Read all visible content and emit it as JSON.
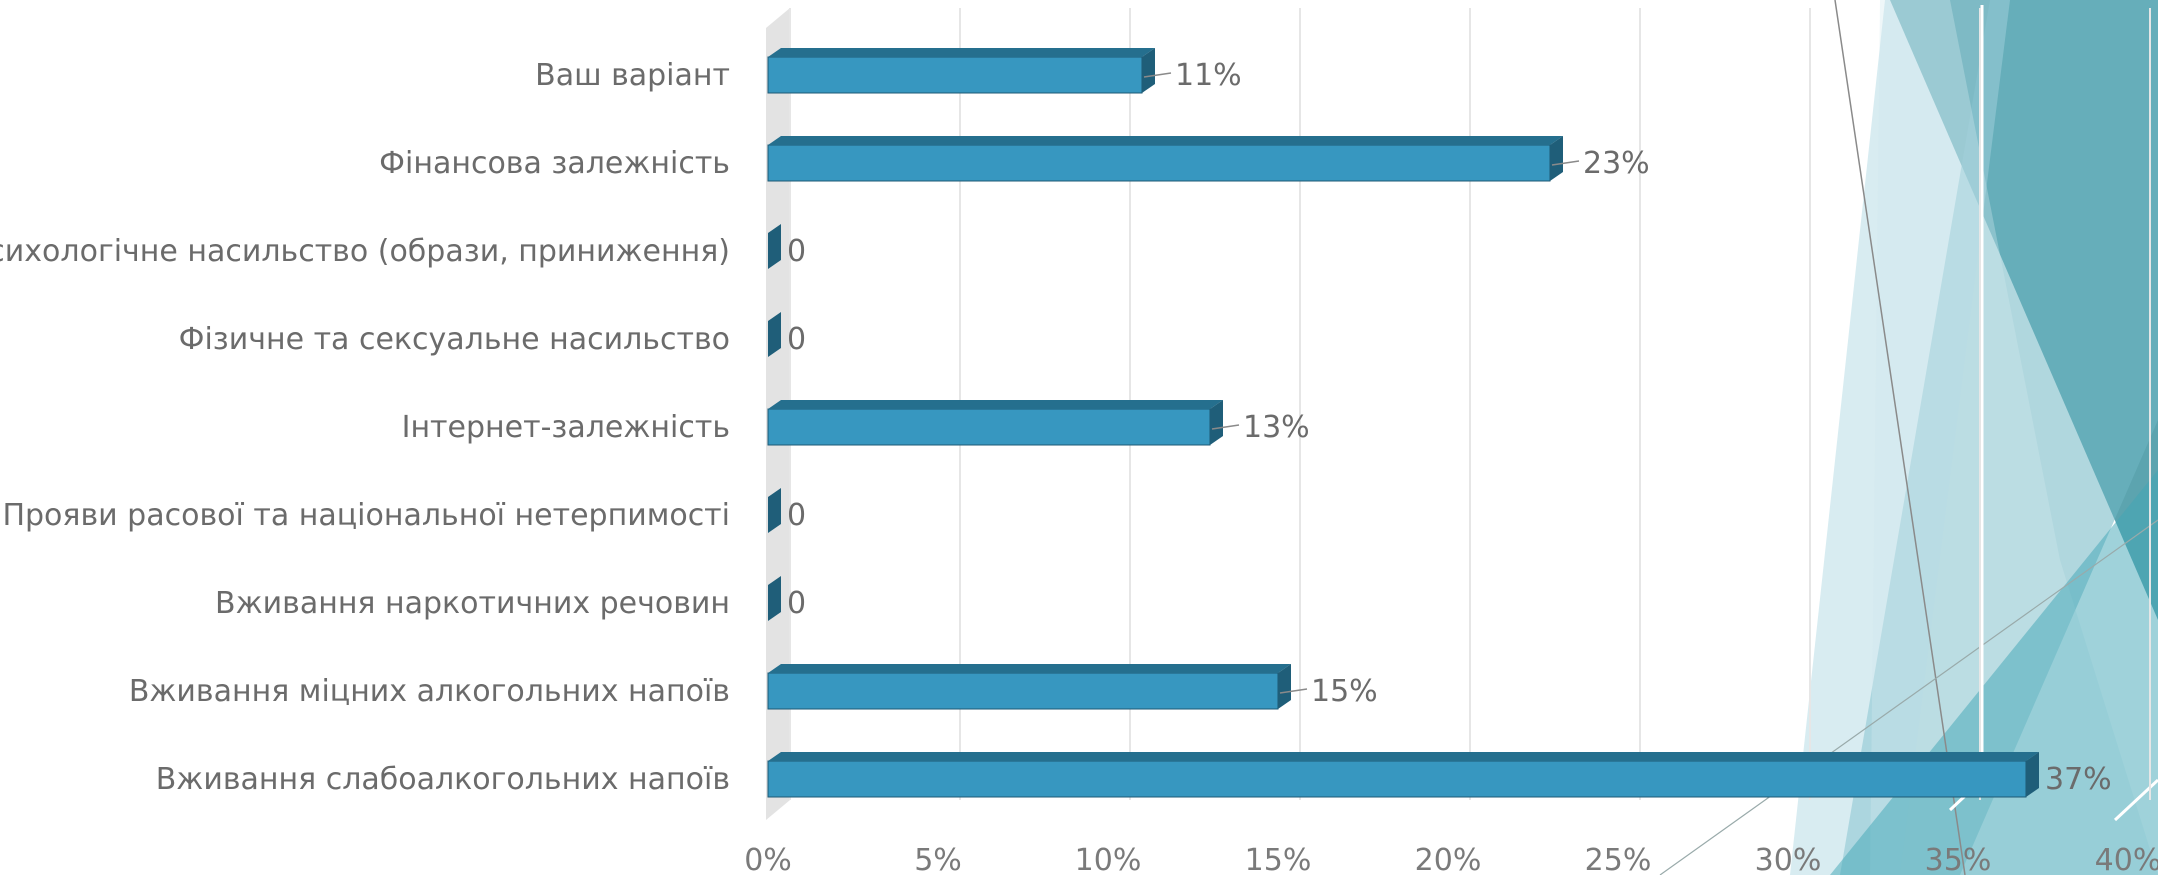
{
  "chart_data": {
    "type": "bar",
    "orientation": "horizontal",
    "categories": [
      "Ваш варіант",
      "Фінансова залежність",
      "Психологічне насильство (образи, приниження)",
      "Фізичне та сексуальне насильство",
      "Інтернет-залежність",
      "Прояви расової та національної нетерпимості",
      "Вживання наркотичних речовин",
      "Вживання міцних алкогольних напоїв",
      "Вживання слабоалкогольних напоїв"
    ],
    "values": [
      11,
      23,
      0,
      0,
      13,
      0,
      0,
      15,
      37
    ],
    "value_labels": [
      "11%",
      "23%",
      "0",
      "0",
      "13%",
      "0",
      "0",
      "15%",
      "37%"
    ],
    "x_ticks": [
      "0%",
      "5%",
      "10%",
      "15%",
      "20%",
      "25%",
      "30%",
      "35%",
      "40%"
    ],
    "xlim": [
      0,
      40
    ],
    "grid": true,
    "bar_style": "3d",
    "colors": {
      "bar_front": "#3797c0",
      "bar_top": "#256f8e",
      "bar_side": "#1f5e79",
      "grid": "#e6e6e6",
      "wall": "#e3e3e3",
      "text": "#6b6b6b"
    }
  },
  "decoration": {
    "colors": [
      "#4a9aa6",
      "#6fb6c3",
      "#a9d4e0",
      "#d2e8ef",
      "#3fa6b6",
      "#ffffff"
    ]
  }
}
